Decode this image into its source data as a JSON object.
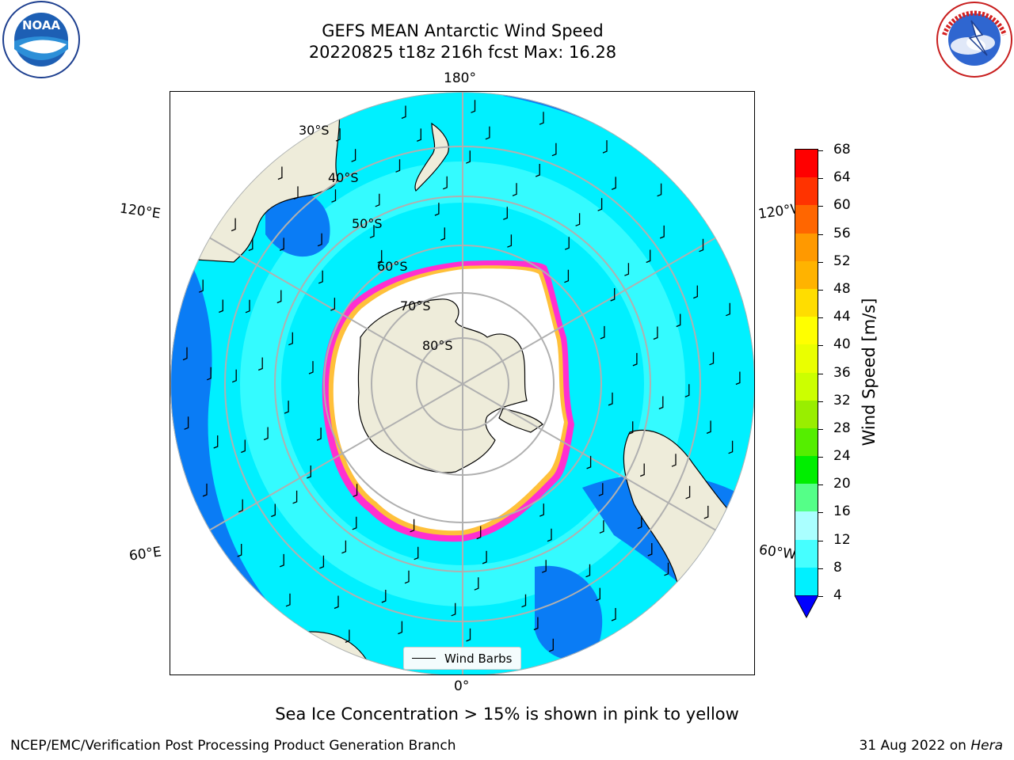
{
  "title": {
    "line1": "GEFS MEAN Antarctic Wind Speed",
    "line2": "20220825 t18z 216h fcst   Max: 16.28"
  },
  "logos": {
    "left": "NOAA",
    "left_ring_text": "NATIONAL OCEANIC AND ATMOSPHERIC ADMINISTRATION · U.S. DEPARTMENT OF COMMERCE",
    "right_ring_text": "NATIONAL WEATHER SERVICE"
  },
  "map": {
    "projection": "south polar stereographic",
    "lon_labels": {
      "top": "180°",
      "bottom": "0°",
      "upper_left": "120°E",
      "upper_right": "120°W",
      "lower_left": "60°E",
      "lower_right": "60°W"
    },
    "lat_labels": [
      "30°S",
      "40°S",
      "50°S",
      "60°S",
      "70°S",
      "80°S"
    ],
    "legend_label": "Wind Barbs",
    "colors": {
      "land": "#eeecda",
      "ocean_4_8": "#0a7cf5",
      "ocean_8_12": "#00f0ff",
      "ocean_12_16": "#46ffff",
      "ice_edge": "#ff2fd0",
      "ice_inner": "#ffc03a"
    }
  },
  "colorbar": {
    "label": "Wind Speed [m/s]",
    "ticks": [
      "68",
      "64",
      "60",
      "56",
      "52",
      "48",
      "44",
      "40",
      "36",
      "32",
      "28",
      "24",
      "20",
      "16",
      "12",
      "8",
      "4"
    ],
    "colors_top_to_bottom": [
      "#ff0000",
      "#ff3300",
      "#ff6600",
      "#ff9900",
      "#ffb300",
      "#ffdd00",
      "#ffff00",
      "#eaff00",
      "#ccff00",
      "#99ee00",
      "#55ee00",
      "#00ee00",
      "#55ff88",
      "#aaffff",
      "#46ffff",
      "#00f0ff",
      "#0a7cf5"
    ],
    "extend_color": "#0000ff"
  },
  "caption": "Sea Ice Concentration > 15% is shown in pink to yellow",
  "footer": {
    "left": "NCEP/EMC/Verification Post Processing Product Generation Branch",
    "right_date": "31 Aug 2022 on ",
    "right_machine": "Hera"
  }
}
